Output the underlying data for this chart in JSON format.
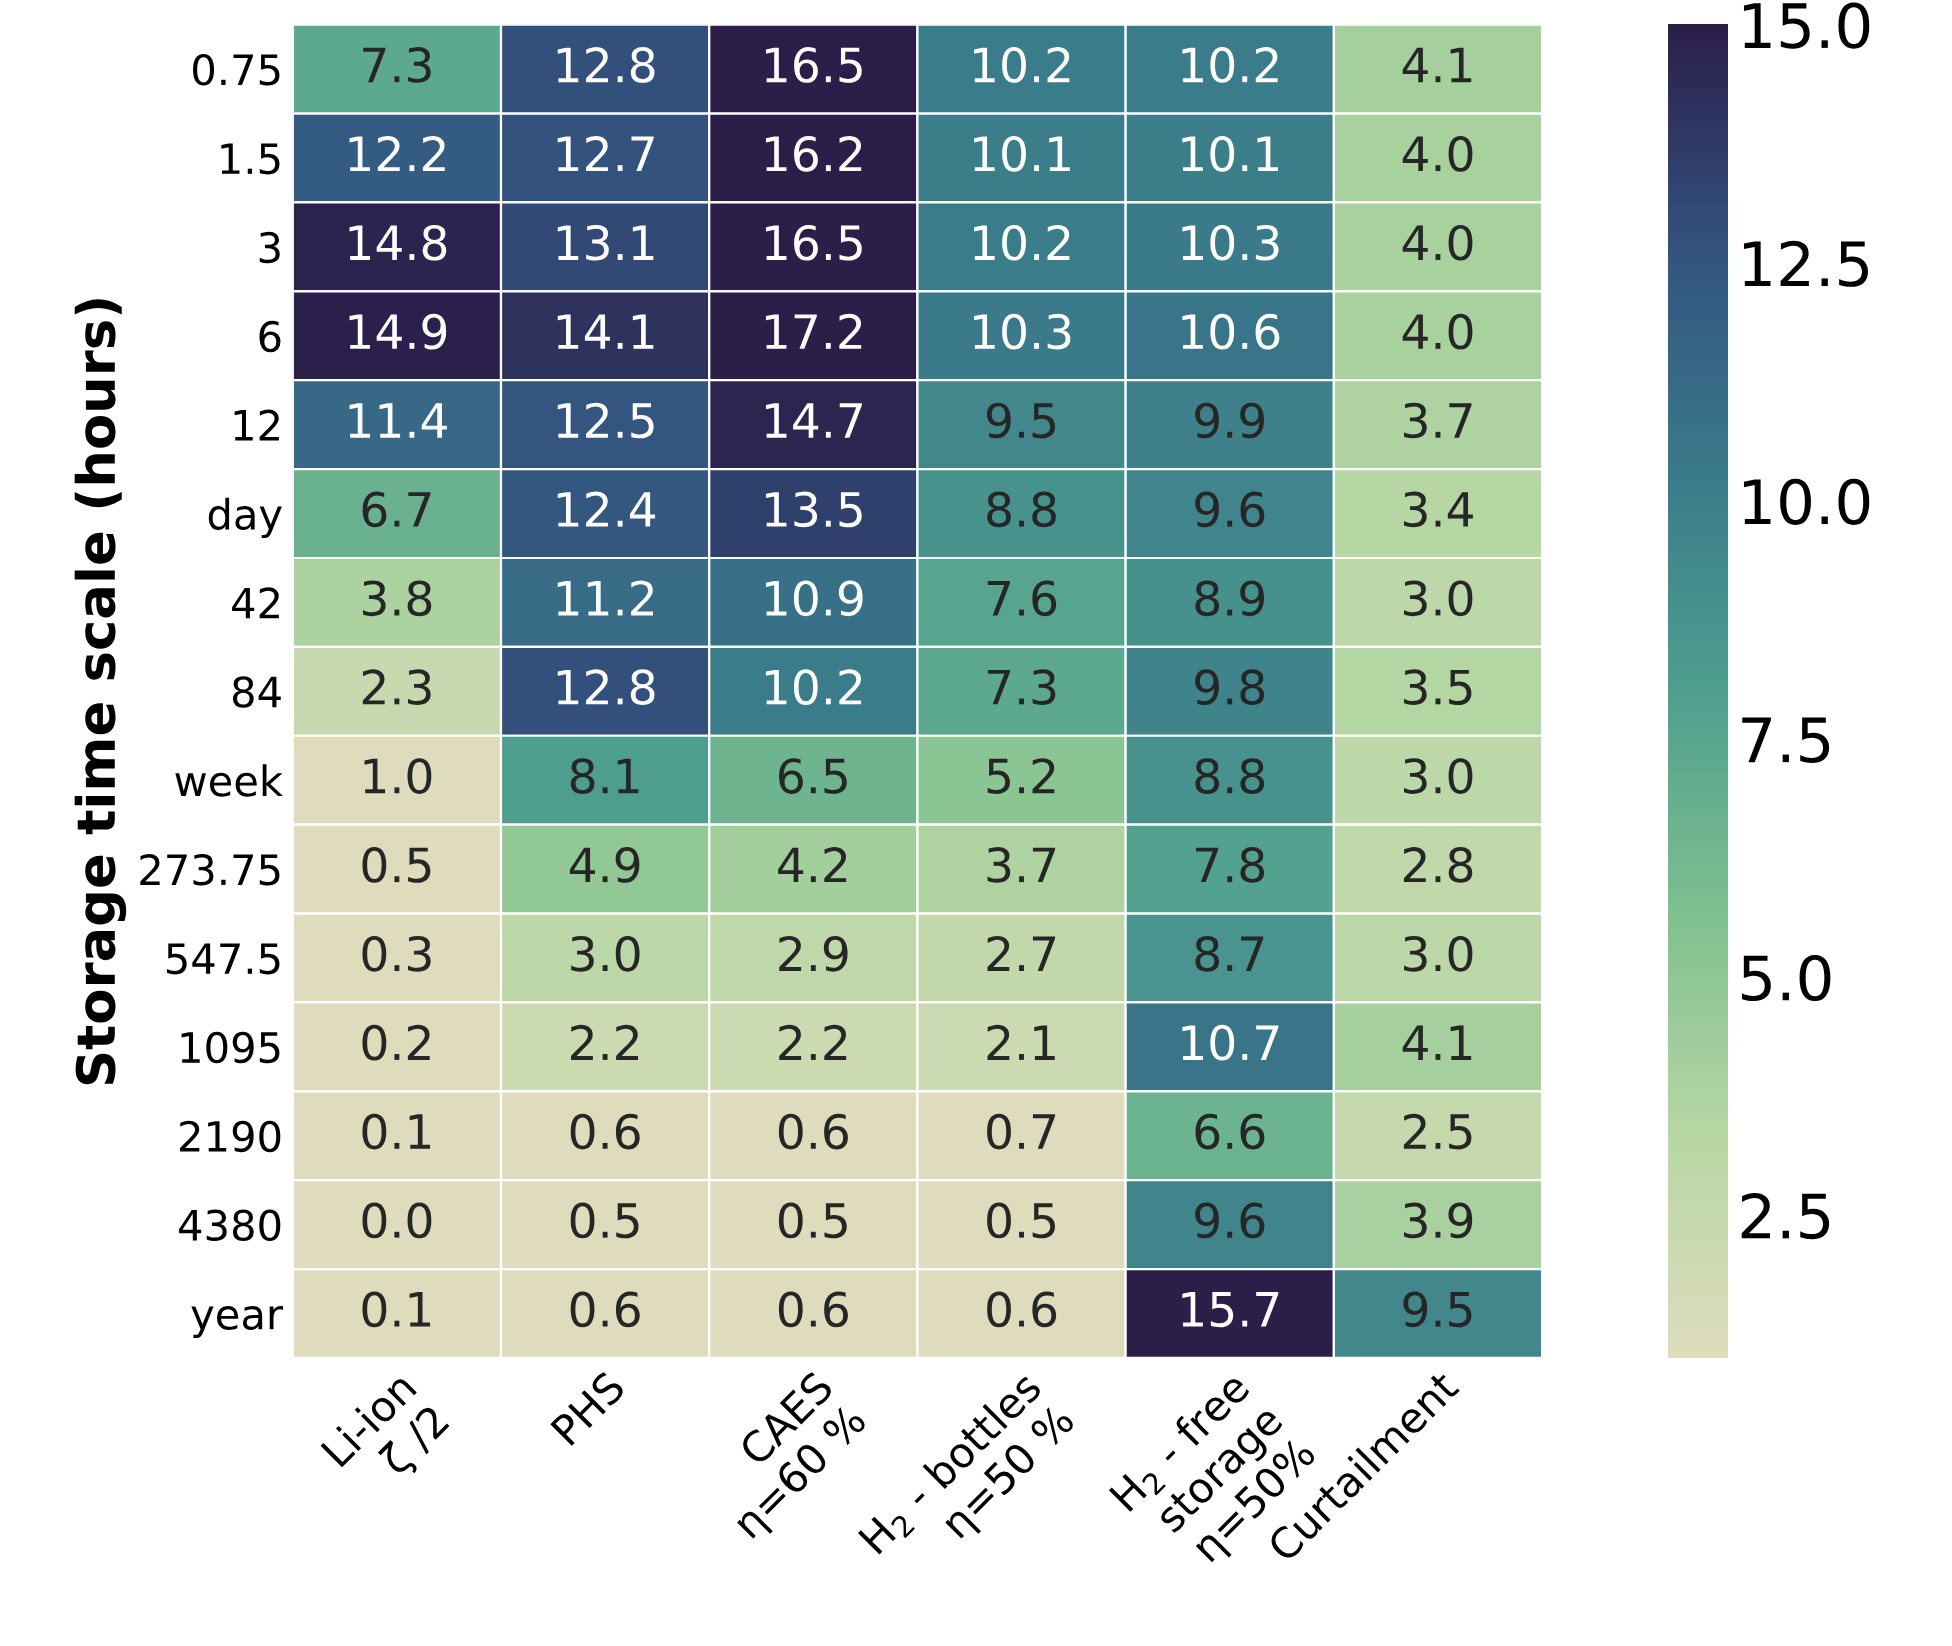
{
  "chart_data": {
    "type": "heatmap",
    "ylabel": "Storage time scale (hours)",
    "categories": [
      "Li-ion\nζ /2",
      "PHS",
      "CAES\nη=60 %",
      "H$_{2}$ - bottles\nη=50 %",
      "H$_{2}$ - free\nstorage\nη=50%",
      "Curtailment"
    ],
    "y_categories": [
      "0.75",
      "1.5",
      "3",
      "6",
      "12",
      "day",
      "42",
      "84",
      "week",
      "273.75",
      "547.5",
      "1095",
      "2190",
      "4380",
      "year"
    ],
    "cells": [
      [
        7.3,
        12.8,
        16.5,
        10.2,
        10.2,
        4.1
      ],
      [
        12.2,
        12.7,
        16.2,
        10.1,
        10.1,
        4.0
      ],
      [
        14.8,
        13.1,
        16.5,
        10.2,
        10.3,
        4.0
      ],
      [
        14.9,
        14.1,
        17.2,
        10.3,
        10.6,
        4.0
      ],
      [
        11.4,
        12.5,
        14.7,
        9.5,
        9.9,
        3.7
      ],
      [
        6.7,
        12.4,
        13.5,
        8.8,
        9.6,
        3.4
      ],
      [
        3.8,
        11.2,
        10.9,
        7.6,
        8.9,
        3.0
      ],
      [
        2.3,
        12.8,
        10.2,
        7.3,
        9.8,
        3.5
      ],
      [
        1.0,
        8.1,
        6.5,
        5.2,
        8.8,
        3.0
      ],
      [
        0.5,
        4.9,
        4.2,
        3.7,
        7.8,
        2.8
      ],
      [
        0.3,
        3.0,
        2.9,
        2.7,
        8.7,
        3.0
      ],
      [
        0.2,
        2.2,
        2.2,
        2.1,
        10.7,
        4.1
      ],
      [
        0.1,
        0.6,
        0.6,
        0.7,
        6.6,
        2.5
      ],
      [
        0.0,
        0.5,
        0.5,
        0.5,
        9.6,
        3.9
      ],
      [
        0.1,
        0.6,
        0.6,
        0.6,
        15.7,
        9.5
      ]
    ],
    "cell_labels": [
      [
        "7.3",
        "12.8",
        "16.5",
        "10.2",
        "10.2",
        "4.1"
      ],
      [
        "12.2",
        "12.7",
        "16.2",
        "10.1",
        "10.1",
        "4.0"
      ],
      [
        "14.8",
        "13.1",
        "16.5",
        "10.2",
        "10.3",
        "4.0"
      ],
      [
        "14.9",
        "14.1",
        "17.2",
        "10.3",
        "10.6",
        "4.0"
      ],
      [
        "11.4",
        "12.5",
        "14.7",
        "9.5",
        "9.9",
        "3.7"
      ],
      [
        "6.7",
        "12.4",
        "13.5",
        "8.8",
        "9.6",
        "3.4"
      ],
      [
        "3.8",
        "11.2",
        "10.9",
        "7.6",
        "8.9",
        "3.0"
      ],
      [
        "2.3",
        "12.8",
        "10.2",
        "7.3",
        "9.8",
        "3.5"
      ],
      [
        "1.0",
        "8.1",
        "6.5",
        "5.2",
        "8.8",
        "3.0"
      ],
      [
        "0.5",
        "4.9",
        "4.2",
        "3.7",
        "7.8",
        "2.8"
      ],
      [
        "0.3",
        "3.0",
        "2.9",
        "2.7",
        "8.7",
        "3.0"
      ],
      [
        "0.2",
        "2.2",
        "2.2",
        "2.1",
        "10.7",
        "4.1"
      ],
      [
        "0.1",
        "0.6",
        "0.6",
        "0.7",
        "6.6",
        "2.5"
      ],
      [
        "0.0",
        "0.5",
        "0.5",
        "0.5",
        "9.6",
        "3.9"
      ],
      [
        "0.1",
        "0.6",
        "0.6",
        "0.6",
        "15.7",
        "9.5"
      ]
    ],
    "clim": [
      1,
      15
    ],
    "cticks": [
      2.5,
      {
        "value": 5,
        "label": "5.0"
      },
      7.5,
      {
        "value": 10,
        "label": "10.0"
      },
      12.5,
      {
        "value": 15,
        "label": "15.0"
      }
    ]
  }
}
